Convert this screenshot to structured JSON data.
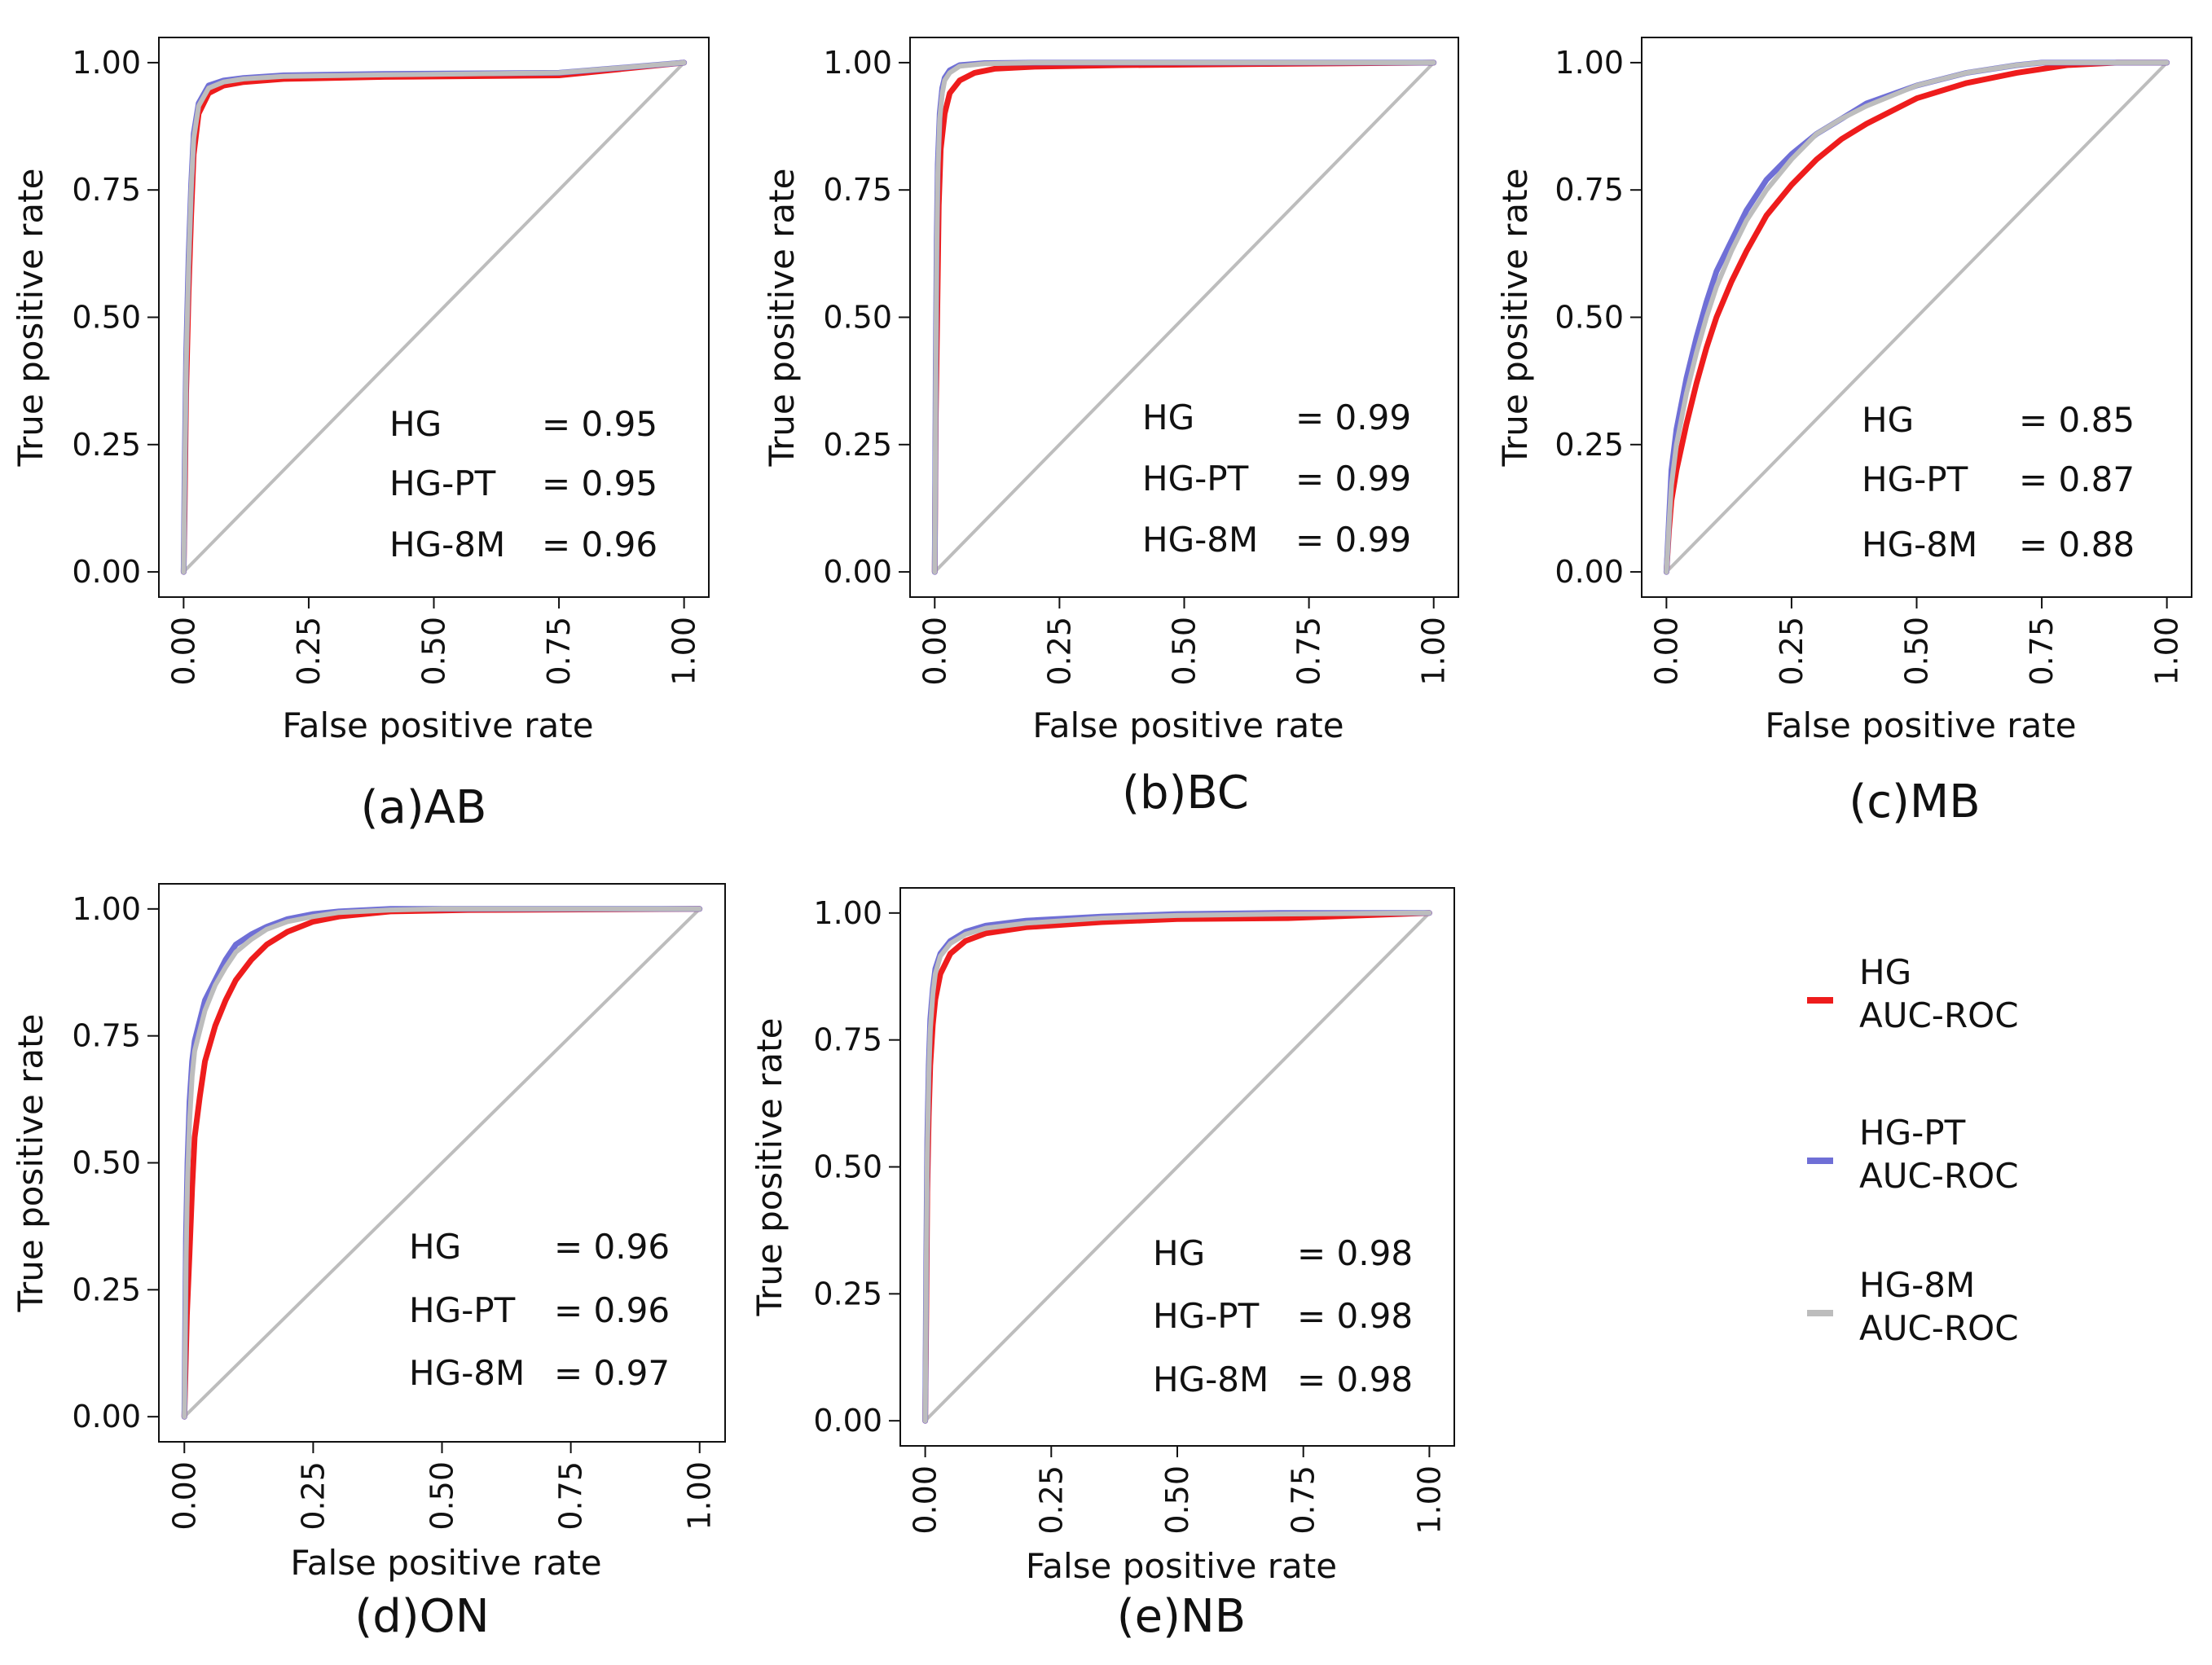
{
  "colors": {
    "HG": "#ee1c1c",
    "HG-PT": "#6f6fd6",
    "HG-8M": "#bdbdbd",
    "diagonal": "#bdbdbd",
    "frame": "#111111"
  },
  "chart_data": [
    {
      "type": "line",
      "caption": "(a)AB",
      "xlabel": "False positive rate",
      "ylabel": "True positive rate",
      "xlim": [
        0,
        1
      ],
      "ylim": [
        0,
        1
      ],
      "xticks": [
        "0.00",
        "0.25",
        "0.50",
        "0.75",
        "1.00"
      ],
      "yticks": [
        "0.00",
        "0.25",
        "0.50",
        "0.75",
        "1.00"
      ],
      "auc": [
        {
          "model": "HG",
          "text": "= 0.95"
        },
        {
          "model": "HG-PT",
          "text": "= 0.95"
        },
        {
          "model": "HG-8M",
          "text": "= 0.96"
        }
      ],
      "series": [
        {
          "name": "HG",
          "x": [
            0,
            0.002,
            0.005,
            0.01,
            0.015,
            0.02,
            0.03,
            0.05,
            0.08,
            0.12,
            0.2,
            0.4,
            0.75,
            1.0
          ],
          "y": [
            0,
            0.12,
            0.35,
            0.55,
            0.7,
            0.82,
            0.9,
            0.94,
            0.955,
            0.962,
            0.968,
            0.972,
            0.975,
            1.0
          ]
        },
        {
          "name": "HG-PT",
          "x": [
            0,
            0.002,
            0.005,
            0.01,
            0.015,
            0.02,
            0.03,
            0.05,
            0.08,
            0.12,
            0.2,
            0.4,
            0.75,
            1.0
          ],
          "y": [
            0,
            0.2,
            0.42,
            0.62,
            0.76,
            0.86,
            0.92,
            0.955,
            0.965,
            0.97,
            0.975,
            0.978,
            0.98,
            1.0
          ]
        },
        {
          "name": "HG-8M",
          "x": [
            0,
            0.002,
            0.005,
            0.01,
            0.015,
            0.02,
            0.03,
            0.05,
            0.08,
            0.12,
            0.2,
            0.4,
            0.75,
            1.0
          ],
          "y": [
            0,
            0.18,
            0.4,
            0.6,
            0.75,
            0.85,
            0.915,
            0.95,
            0.962,
            0.968,
            0.973,
            0.976,
            0.98,
            1.0
          ]
        }
      ]
    },
    {
      "type": "line",
      "caption": "(b)BC",
      "xlabel": "False positive rate",
      "ylabel": "True positive rate",
      "xlim": [
        0,
        1
      ],
      "ylim": [
        0,
        1
      ],
      "xticks": [
        "0.00",
        "0.25",
        "0.50",
        "0.75",
        "1.00"
      ],
      "yticks": [
        "0.00",
        "0.25",
        "0.50",
        "0.75",
        "1.00"
      ],
      "auc": [
        {
          "model": "HG",
          "text": "= 0.99"
        },
        {
          "model": "HG-PT",
          "text": "= 0.99"
        },
        {
          "model": "HG-8M",
          "text": "= 0.99"
        }
      ],
      "series": [
        {
          "name": "HG",
          "x": [
            0,
            0.002,
            0.005,
            0.008,
            0.012,
            0.02,
            0.03,
            0.05,
            0.08,
            0.12,
            0.2,
            0.37,
            1.0
          ],
          "y": [
            0,
            0.3,
            0.5,
            0.72,
            0.83,
            0.9,
            0.94,
            0.965,
            0.98,
            0.988,
            0.992,
            0.995,
            1.0
          ]
        },
        {
          "name": "HG-PT",
          "x": [
            0,
            0.002,
            0.004,
            0.006,
            0.01,
            0.015,
            0.02,
            0.03,
            0.05,
            0.1,
            0.2,
            1.0
          ],
          "y": [
            0,
            0.4,
            0.65,
            0.8,
            0.9,
            0.95,
            0.97,
            0.985,
            0.995,
            0.999,
            1.0,
            1.0
          ]
        },
        {
          "name": "HG-8M",
          "x": [
            0,
            0.002,
            0.004,
            0.006,
            0.01,
            0.015,
            0.02,
            0.03,
            0.05,
            0.1,
            0.2,
            1.0
          ],
          "y": [
            0,
            0.38,
            0.62,
            0.78,
            0.89,
            0.94,
            0.965,
            0.98,
            0.993,
            0.998,
            1.0,
            1.0
          ]
        }
      ]
    },
    {
      "type": "line",
      "caption": "(c)MB",
      "xlabel": "False positive rate",
      "ylabel": "True positive rate",
      "xlim": [
        0,
        1
      ],
      "ylim": [
        0,
        1
      ],
      "xticks": [
        "0.00",
        "0.25",
        "0.50",
        "0.75",
        "1.00"
      ],
      "yticks": [
        "0.00",
        "0.25",
        "0.50",
        "0.75",
        "1.00"
      ],
      "auc": [
        {
          "model": "HG",
          "text": "= 0.85"
        },
        {
          "model": "HG-PT",
          "text": "= 0.87"
        },
        {
          "model": "HG-8M",
          "text": "= 0.88"
        }
      ],
      "series": [
        {
          "name": "HG",
          "x": [
            0,
            0.005,
            0.01,
            0.02,
            0.04,
            0.06,
            0.08,
            0.1,
            0.13,
            0.16,
            0.2,
            0.25,
            0.3,
            0.35,
            0.4,
            0.5,
            0.6,
            0.7,
            0.8,
            0.9,
            1.0
          ],
          "y": [
            0,
            0.08,
            0.14,
            0.2,
            0.29,
            0.37,
            0.44,
            0.5,
            0.57,
            0.63,
            0.7,
            0.76,
            0.81,
            0.85,
            0.88,
            0.93,
            0.96,
            0.98,
            0.995,
            1.0,
            1.0
          ]
        },
        {
          "name": "HG-PT",
          "x": [
            0,
            0.005,
            0.01,
            0.02,
            0.04,
            0.06,
            0.08,
            0.1,
            0.13,
            0.16,
            0.2,
            0.25,
            0.3,
            0.35,
            0.4,
            0.5,
            0.6,
            0.7,
            0.75,
            1.0
          ],
          "y": [
            0,
            0.1,
            0.2,
            0.28,
            0.38,
            0.46,
            0.53,
            0.59,
            0.65,
            0.71,
            0.77,
            0.82,
            0.86,
            0.89,
            0.92,
            0.955,
            0.98,
            0.995,
            1.0,
            1.0
          ]
        },
        {
          "name": "HG-8M",
          "x": [
            0,
            0.005,
            0.01,
            0.02,
            0.04,
            0.06,
            0.08,
            0.1,
            0.13,
            0.16,
            0.2,
            0.25,
            0.3,
            0.35,
            0.4,
            0.5,
            0.6,
            0.7,
            0.75,
            1.0
          ],
          "y": [
            0,
            0.09,
            0.17,
            0.25,
            0.35,
            0.43,
            0.5,
            0.56,
            0.63,
            0.69,
            0.75,
            0.81,
            0.86,
            0.89,
            0.915,
            0.955,
            0.98,
            0.995,
            1.0,
            1.0
          ]
        }
      ]
    },
    {
      "type": "line",
      "caption": "(d)ON",
      "xlabel": "False positive rate",
      "ylabel": "True positive rate",
      "xlim": [
        0,
        1
      ],
      "ylim": [
        0,
        1
      ],
      "xticks": [
        "0.00",
        "0.25",
        "0.50",
        "0.75",
        "1.00"
      ],
      "yticks": [
        "0.00",
        "0.25",
        "0.50",
        "0.75",
        "1.00"
      ],
      "auc": [
        {
          "model": "HG",
          "text": "= 0.96"
        },
        {
          "model": "HG-PT",
          "text": "= 0.96"
        },
        {
          "model": "HG-8M",
          "text": "= 0.97"
        }
      ],
      "series": [
        {
          "name": "HG",
          "x": [
            0,
            0.005,
            0.01,
            0.015,
            0.02,
            0.03,
            0.04,
            0.06,
            0.08,
            0.1,
            0.13,
            0.16,
            0.2,
            0.25,
            0.3,
            0.4,
            0.5,
            0.55,
            1.0
          ],
          "y": [
            0,
            0.2,
            0.32,
            0.45,
            0.55,
            0.63,
            0.7,
            0.77,
            0.82,
            0.86,
            0.9,
            0.93,
            0.955,
            0.975,
            0.985,
            0.995,
            0.997,
            0.998,
            1.0
          ]
        },
        {
          "name": "HG-PT",
          "x": [
            0,
            0.003,
            0.006,
            0.01,
            0.015,
            0.02,
            0.03,
            0.04,
            0.06,
            0.08,
            0.1,
            0.13,
            0.16,
            0.2,
            0.25,
            0.3,
            0.4,
            0.5,
            1.0
          ],
          "y": [
            0,
            0.35,
            0.5,
            0.62,
            0.7,
            0.74,
            0.78,
            0.82,
            0.86,
            0.9,
            0.93,
            0.95,
            0.965,
            0.98,
            0.99,
            0.995,
            1.0,
            1.0,
            1.0
          ]
        },
        {
          "name": "HG-8M",
          "x": [
            0,
            0.003,
            0.006,
            0.01,
            0.015,
            0.02,
            0.03,
            0.04,
            0.06,
            0.08,
            0.1,
            0.13,
            0.16,
            0.2,
            0.25,
            0.3,
            0.4,
            0.5,
            1.0
          ],
          "y": [
            0,
            0.3,
            0.46,
            0.58,
            0.67,
            0.72,
            0.76,
            0.8,
            0.85,
            0.885,
            0.915,
            0.94,
            0.96,
            0.975,
            0.985,
            0.993,
            0.998,
            1.0,
            1.0
          ]
        }
      ]
    },
    {
      "type": "line",
      "caption": "(e)NB",
      "xlabel": "False positive rate",
      "ylabel": "True positive rate",
      "xlim": [
        0,
        1
      ],
      "ylim": [
        0,
        1
      ],
      "xticks": [
        "0.00",
        "0.25",
        "0.50",
        "0.75",
        "1.00"
      ],
      "yticks": [
        "0.00",
        "0.25",
        "0.50",
        "0.75",
        "1.00"
      ],
      "auc": [
        {
          "model": "HG",
          "text": "= 0.98"
        },
        {
          "model": "HG-PT",
          "text": "= 0.98"
        },
        {
          "model": "HG-8M",
          "text": "= 0.98"
        }
      ],
      "series": [
        {
          "name": "HG",
          "x": [
            0,
            0.002,
            0.004,
            0.007,
            0.01,
            0.015,
            0.02,
            0.03,
            0.05,
            0.08,
            0.12,
            0.2,
            0.35,
            0.5,
            0.72,
            1.0
          ],
          "y": [
            0,
            0.2,
            0.45,
            0.6,
            0.7,
            0.78,
            0.83,
            0.88,
            0.92,
            0.945,
            0.96,
            0.972,
            0.982,
            0.988,
            0.99,
            1.0
          ]
        },
        {
          "name": "HG-PT",
          "x": [
            0,
            0.002,
            0.004,
            0.007,
            0.01,
            0.015,
            0.02,
            0.03,
            0.05,
            0.08,
            0.12,
            0.2,
            0.35,
            0.5,
            0.7,
            1.0
          ],
          "y": [
            0,
            0.3,
            0.55,
            0.7,
            0.79,
            0.85,
            0.89,
            0.92,
            0.945,
            0.963,
            0.975,
            0.985,
            0.993,
            0.998,
            1.0,
            1.0
          ]
        },
        {
          "name": "HG-8M",
          "x": [
            0,
            0.002,
            0.004,
            0.007,
            0.01,
            0.015,
            0.02,
            0.03,
            0.05,
            0.08,
            0.12,
            0.2,
            0.35,
            0.5,
            0.7,
            1.0
          ],
          "y": [
            0,
            0.28,
            0.52,
            0.68,
            0.77,
            0.84,
            0.88,
            0.915,
            0.94,
            0.958,
            0.97,
            0.98,
            0.99,
            0.995,
            0.998,
            1.0
          ]
        }
      ]
    }
  ],
  "legend": {
    "items": [
      {
        "name": "HG",
        "line1": "HG",
        "line2": "AUC-ROC"
      },
      {
        "name": "HG-PT",
        "line1": "HG-PT",
        "line2": "AUC-ROC"
      },
      {
        "name": "HG-8M",
        "line1": "HG-8M",
        "line2": "AUC-ROC"
      }
    ]
  }
}
